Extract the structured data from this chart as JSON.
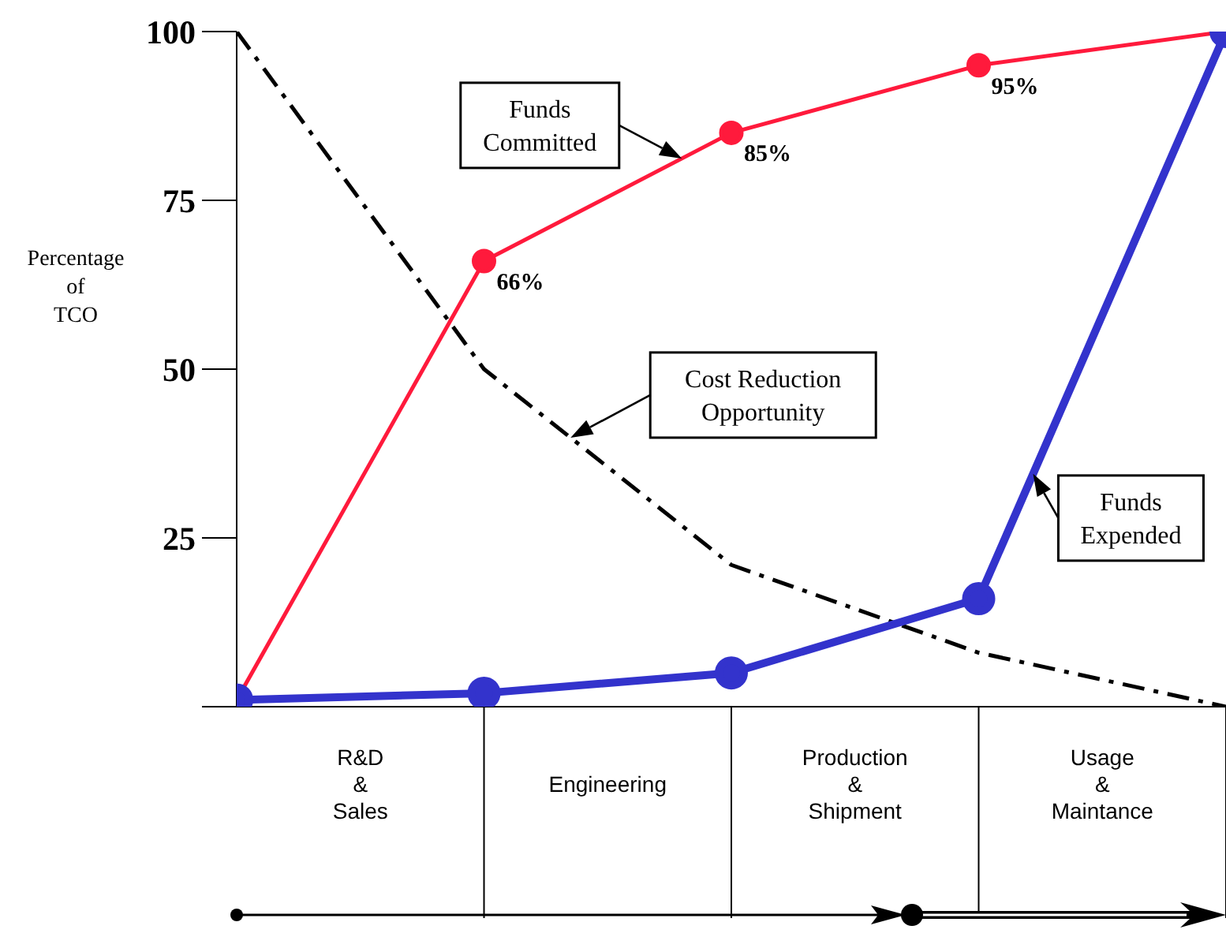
{
  "chart_data": {
    "type": "line",
    "ylabel": "Percentage\nof\nTCO",
    "categories": [
      null,
      null,
      null,
      null,
      null
    ],
    "ylim": [
      0,
      100
    ],
    "yticks": [
      {
        "value": 0,
        "label": null
      },
      25,
      50,
      75,
      100
    ],
    "series": [
      {
        "color": "#000000",
        "marker": "none",
        "line_style": "dashed",
        "values": [
          100,
          50,
          21,
          8,
          0
        ]
      },
      {
        "color": "#ff1a3c",
        "marker": "circle",
        "line_style": "solid",
        "values": [
          1,
          66,
          85,
          95,
          100
        ],
        "value_labels": [
          null,
          "66%",
          "85%",
          "95%",
          null
        ]
      },
      {
        "color": "#3333cc",
        "marker": "circle",
        "line_style": "solid",
        "values": [
          1,
          2,
          5,
          16,
          100
        ]
      }
    ],
    "annotations": [
      "Funds\nCommitted",
      "Cost Reduction\nOpportunity",
      "Funds\nExpended",
      "R&D\n&\nSales",
      "Engineering",
      "Production\n&\nShipment",
      "Usage\n&\nMaintance"
    ]
  }
}
